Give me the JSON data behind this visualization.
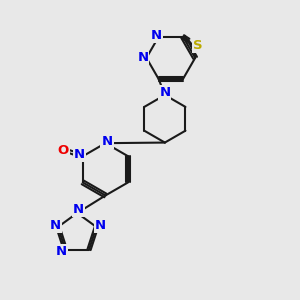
{
  "bg_color": "#e8e8e8",
  "bond_color": "#1a1a1a",
  "N_color": "#0000ee",
  "S_color": "#bbaa00",
  "O_color": "#ee0000",
  "lw": 1.5,
  "dbo": 0.055,
  "fs": 9.5,
  "fig_w": 3.0,
  "fig_h": 3.0,
  "dpi": 100,
  "xlim": [
    0,
    10
  ],
  "ylim": [
    0,
    10
  ]
}
